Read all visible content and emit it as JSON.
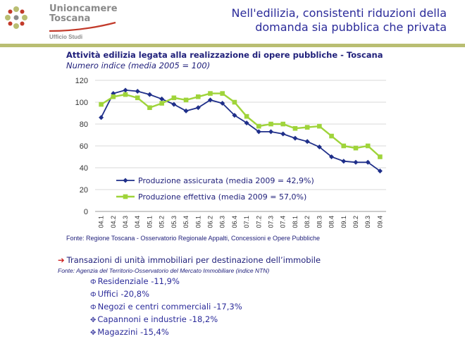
{
  "header": {
    "logo_line1": "Unioncamere",
    "logo_line2": "Toscana",
    "logo_office": "Ufficio Studi",
    "title_line1": "Nell'edilizia, consistenti riduzioni della",
    "title_line2": "domanda sia pubblica che privata",
    "accent_color": "#b9be72",
    "title_color": "#2b2b9a"
  },
  "chart_data": {
    "type": "line",
    "title": "Attività edilizia legata alla realizzazione di opere pubbliche - Toscana",
    "subtitle": "Numero indice (media 2005 = 100)",
    "categories": [
      "04.1",
      "04.2",
      "04.3",
      "04.4",
      "05.1",
      "05.2",
      "05.3",
      "05.4",
      "06.1",
      "06.2",
      "06.3",
      "06.4",
      "07.1",
      "07.2",
      "07.3",
      "07.4",
      "08.1",
      "08.2",
      "08.3",
      "08.4",
      "09.1",
      "09.2",
      "09.3",
      "09.4"
    ],
    "series": [
      {
        "name": "Produzione assicurata (media 2009 = 42,9%)",
        "color": "#1f2f8a",
        "marker": "diamond",
        "values": [
          86,
          108,
          111,
          110,
          107,
          103,
          98,
          92,
          95,
          102,
          99,
          88,
          81,
          73,
          73,
          71,
          67,
          64,
          59,
          50,
          46,
          45,
          45,
          37
        ]
      },
      {
        "name": "Produzione effettiva (media 2009 = 57,0%)",
        "color": "#9fd43a",
        "marker": "square",
        "values": [
          98,
          105,
          107,
          104,
          95,
          99,
          104,
          102,
          105,
          108,
          108,
          100,
          87,
          78,
          80,
          80,
          76,
          77,
          78,
          69,
          60,
          58,
          60,
          50
        ]
      }
    ],
    "yticks": [
      "0",
      "20",
      "40",
      "60",
      "80",
      "100",
      "120"
    ],
    "ylim": [
      0,
      120
    ],
    "grid": true,
    "legend": "lower-left",
    "source": "Fonte: Regione Toscana - Osservatorio Regionale Appalti, Concessioni e Opere Pubbliche"
  },
  "section": {
    "heading": "Transazioni di unità immobiliari per destinazione dell’immobile",
    "source": "Fonte: Agenzia del Territorio-Osservatorio del Mercato Immobiliare (indice NTN)",
    "items": [
      {
        "label": "Residenziale -11,9%",
        "bullet": "Ф"
      },
      {
        "label": "Uffici -20,8%",
        "bullet": "Ф"
      },
      {
        "label": "Negozi e centri commerciali -17,3%",
        "bullet": "Ф"
      },
      {
        "label": "Capannoni e industrie -18,2%",
        "bullet": "✥"
      },
      {
        "label": "Magazzini -15,4%",
        "bullet": "✥"
      }
    ]
  }
}
